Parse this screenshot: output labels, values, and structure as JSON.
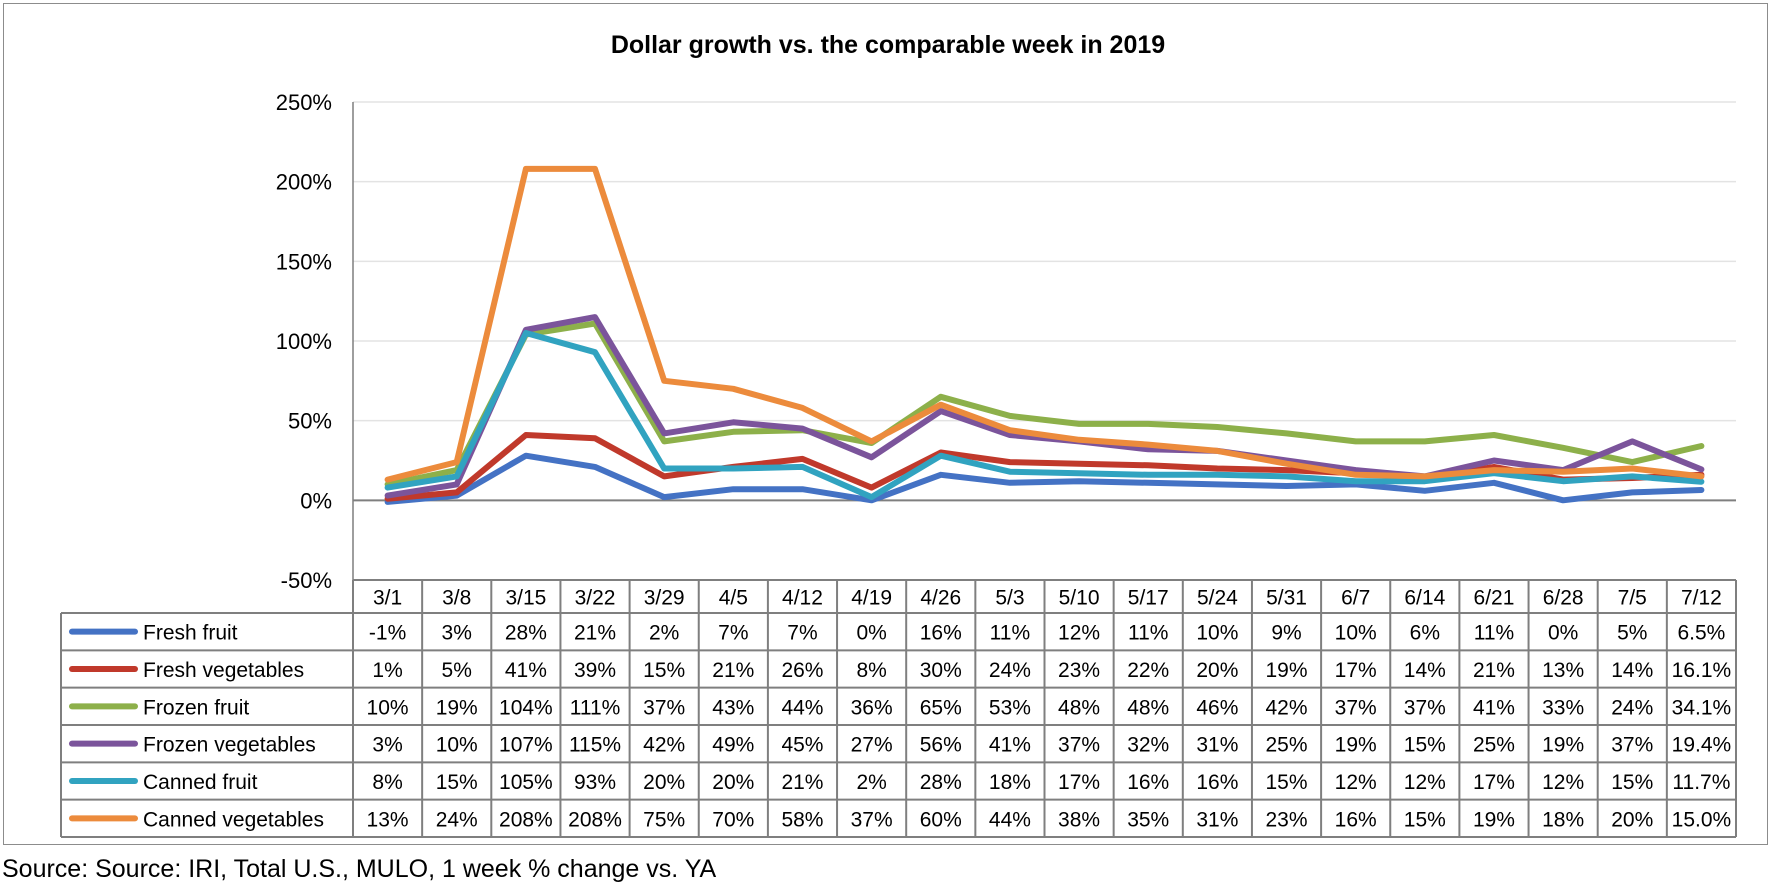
{
  "chart_data": {
    "type": "line",
    "title": "Dollar growth vs. the comparable week in 2019",
    "xlabel": "",
    "ylabel": "",
    "ylim": [
      -50,
      250
    ],
    "yticks": [
      "-50%",
      "0%",
      "50%",
      "100%",
      "150%",
      "200%",
      "250%"
    ],
    "ytick_values": [
      -50,
      0,
      50,
      100,
      150,
      200,
      250
    ],
    "grid": true,
    "legend": "data-table",
    "categories": [
      "3/1",
      "3/8",
      "3/15",
      "3/22",
      "3/29",
      "4/5",
      "4/12",
      "4/19",
      "4/26",
      "5/3",
      "5/10",
      "5/17",
      "5/24",
      "5/31",
      "6/7",
      "6/14",
      "6/21",
      "6/28",
      "7/5",
      "7/12"
    ],
    "series": [
      {
        "name": "Fresh fruit",
        "color": "#4472c4",
        "values": [
          -1,
          3,
          28,
          21,
          2,
          7,
          7,
          0,
          16,
          11,
          12,
          11,
          10,
          9,
          10,
          6,
          11,
          0,
          5,
          6.5
        ],
        "labels": [
          "-1%",
          "3%",
          "28%",
          "21%",
          "2%",
          "7%",
          "7%",
          "0%",
          "16%",
          "11%",
          "12%",
          "11%",
          "10%",
          "9%",
          "10%",
          "6%",
          "11%",
          "0%",
          "5%",
          "6.5%"
        ]
      },
      {
        "name": "Fresh vegetables",
        "color": "#c0392b",
        "values": [
          1,
          5,
          41,
          39,
          15,
          21,
          26,
          8,
          30,
          24,
          23,
          22,
          20,
          19,
          17,
          14,
          21,
          13,
          14,
          16.1
        ],
        "labels": [
          "1%",
          "5%",
          "41%",
          "39%",
          "15%",
          "21%",
          "26%",
          "8%",
          "30%",
          "24%",
          "23%",
          "22%",
          "20%",
          "19%",
          "17%",
          "14%",
          "21%",
          "13%",
          "14%",
          "16.1%"
        ]
      },
      {
        "name": "Frozen fruit",
        "color": "#8db04a",
        "values": [
          10,
          19,
          104,
          111,
          37,
          43,
          44,
          36,
          65,
          53,
          48,
          48,
          46,
          42,
          37,
          37,
          41,
          33,
          24,
          34.1
        ],
        "labels": [
          "10%",
          "19%",
          "104%",
          "111%",
          "37%",
          "43%",
          "44%",
          "36%",
          "65%",
          "53%",
          "48%",
          "48%",
          "46%",
          "42%",
          "37%",
          "37%",
          "41%",
          "33%",
          "24%",
          "34.1%"
        ]
      },
      {
        "name": "Frozen vegetables",
        "color": "#7b549b",
        "values": [
          3,
          10,
          107,
          115,
          42,
          49,
          45,
          27,
          56,
          41,
          37,
          32,
          31,
          25,
          19,
          15,
          25,
          19,
          37,
          19.4
        ],
        "labels": [
          "3%",
          "10%",
          "107%",
          "115%",
          "42%",
          "49%",
          "45%",
          "27%",
          "56%",
          "41%",
          "37%",
          "32%",
          "31%",
          "25%",
          "19%",
          "15%",
          "25%",
          "19%",
          "37%",
          "19.4%"
        ]
      },
      {
        "name": "Canned fruit",
        "color": "#31a3c0",
        "values": [
          8,
          15,
          105,
          93,
          20,
          20,
          21,
          2,
          28,
          18,
          17,
          16,
          16,
          15,
          12,
          12,
          17,
          12,
          15,
          11.7
        ],
        "labels": [
          "8%",
          "15%",
          "105%",
          "93%",
          "20%",
          "20%",
          "21%",
          "2%",
          "28%",
          "18%",
          "17%",
          "16%",
          "16%",
          "15%",
          "12%",
          "12%",
          "17%",
          "12%",
          "15%",
          "11.7%"
        ]
      },
      {
        "name": "Canned vegetables",
        "color": "#ec8b3c",
        "values": [
          13,
          24,
          208,
          208,
          75,
          70,
          58,
          37,
          60,
          44,
          38,
          35,
          31,
          23,
          16,
          15,
          19,
          18,
          20,
          15.0
        ],
        "labels": [
          "13%",
          "24%",
          "208%",
          "208%",
          "75%",
          "70%",
          "58%",
          "37%",
          "60%",
          "44%",
          "38%",
          "35%",
          "31%",
          "23%",
          "16%",
          "15%",
          "19%",
          "18%",
          "20%",
          "15.0%"
        ]
      }
    ]
  },
  "source": "Source: Source: IRI, Total U.S., MULO, 1 week % change vs. YA"
}
